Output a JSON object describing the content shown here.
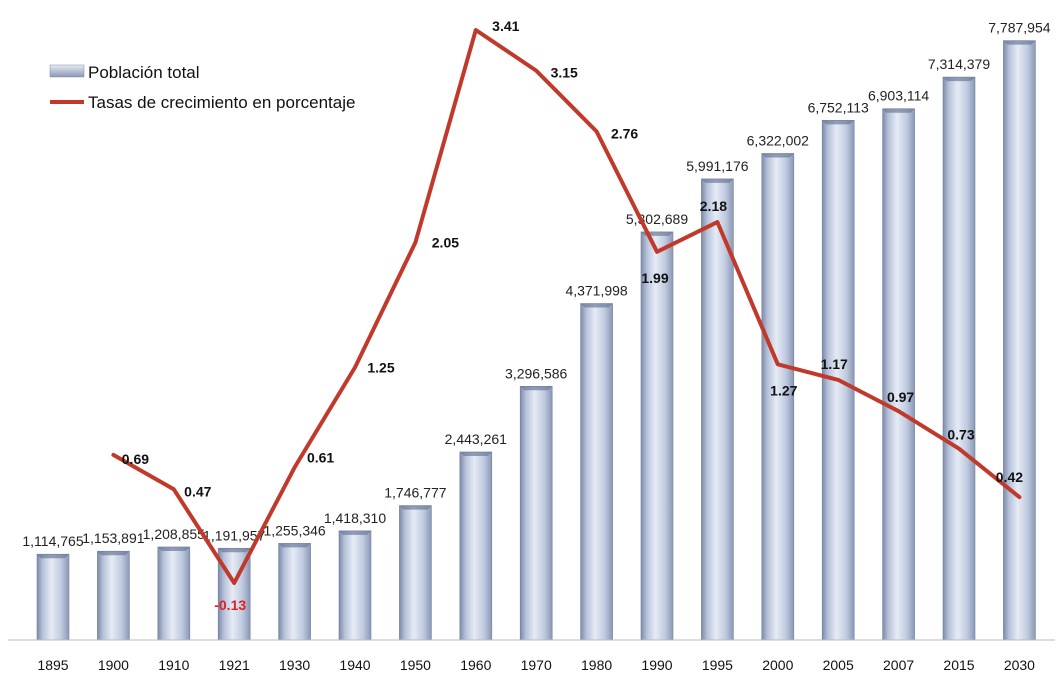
{
  "chart_data": {
    "type": "bar",
    "categories": [
      "1895",
      "1900",
      "1910",
      "1921",
      "1930",
      "1940",
      "1950",
      "1960",
      "1970",
      "1980",
      "1990",
      "1995",
      "2000",
      "2005",
      "2007",
      "2015",
      "2030"
    ],
    "series": [
      {
        "name": "Población total",
        "type": "bar",
        "values": [
          1114765,
          1153891,
          1208855,
          1191957,
          1255346,
          1418310,
          1746777,
          2443261,
          3296586,
          4371998,
          5302689,
          5991176,
          6322002,
          6752113,
          6903114,
          7314379,
          7787954
        ],
        "labels": [
          "1,114,765",
          "1,153,891",
          "1,208,855",
          "1,191,957",
          "1,255,346",
          "1,418,310",
          "1,746,777",
          "2,443,261",
          "3,296,586",
          "4,371,998",
          "5,302,689",
          "5,991,176",
          "6,322,002",
          "6,752,113",
          "6,903,114",
          "7,314,379",
          "7,787,954"
        ]
      },
      {
        "name": "Tasas de crecimiento en porcentaje",
        "type": "line",
        "color": "#c0392b",
        "values": [
          null,
          0.69,
          0.47,
          -0.13,
          0.61,
          1.25,
          2.05,
          3.41,
          3.15,
          2.76,
          1.99,
          2.18,
          1.27,
          1.17,
          0.97,
          0.73,
          0.42
        ],
        "labels": [
          "",
          "0.69",
          "0.47",
          "-0.13",
          "0.61",
          "1.25",
          "2.05",
          "3.41",
          "3.15",
          "2.76",
          "1.99",
          "2.18",
          "1.27",
          "1.17",
          "0.97",
          "0.73",
          "0.42"
        ]
      }
    ],
    "legend": [
      "Población total",
      "Tasas de crecimiento en porcentaje"
    ],
    "legend_position": "top-left",
    "colors": {
      "bar": "#b8c4dc",
      "line": "#c0392b",
      "negative_label": "#e02020"
    },
    "ylim_bars": [
      0,
      7900000
    ],
    "ylim_rate": [
      -0.5,
      3.5
    ],
    "grid": false
  }
}
